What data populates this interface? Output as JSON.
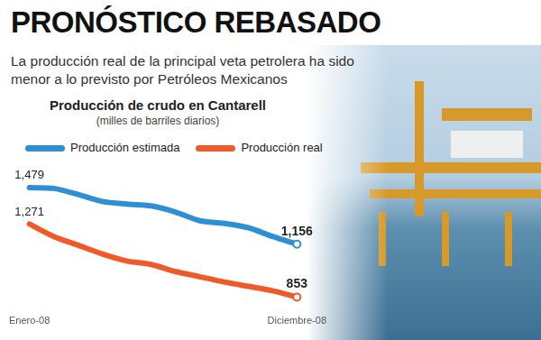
{
  "header": {
    "title": "PRONÓSTICO REBASADO",
    "subtitle": "La producción real de la principal veta petrolera ha sido menor a lo previsto por Petróleos Mexicanos"
  },
  "chart_data": {
    "type": "line",
    "title": "Producción de crudo en Cantarell",
    "y_label": "(milles de barriles diarios)",
    "categories": [
      "Enero-08",
      null,
      null,
      null,
      null,
      null,
      null,
      null,
      null,
      null,
      null,
      "Diciembre-08"
    ],
    "series": [
      {
        "name": "Producción estimada",
        "color": "#2e8fd4",
        "values": [
          1479,
          1475,
          1440,
          1400,
          1385,
          1375,
          1340,
          1290,
          1275,
          1250,
          1200,
          1156
        ],
        "value_labels": [
          "1,479",
          null,
          null,
          null,
          null,
          null,
          null,
          null,
          null,
          null,
          null,
          "1,156"
        ]
      },
      {
        "name": "Producción real",
        "color": "#f05a28",
        "values": [
          1271,
          1200,
          1150,
          1100,
          1060,
          1040,
          1000,
          970,
          940,
          915,
          890,
          853
        ],
        "value_labels": [
          "1,271",
          null,
          null,
          null,
          null,
          null,
          null,
          null,
          null,
          null,
          null,
          "853"
        ]
      }
    ],
    "legend": "top",
    "grid": false,
    "tick_labels": "x"
  }
}
